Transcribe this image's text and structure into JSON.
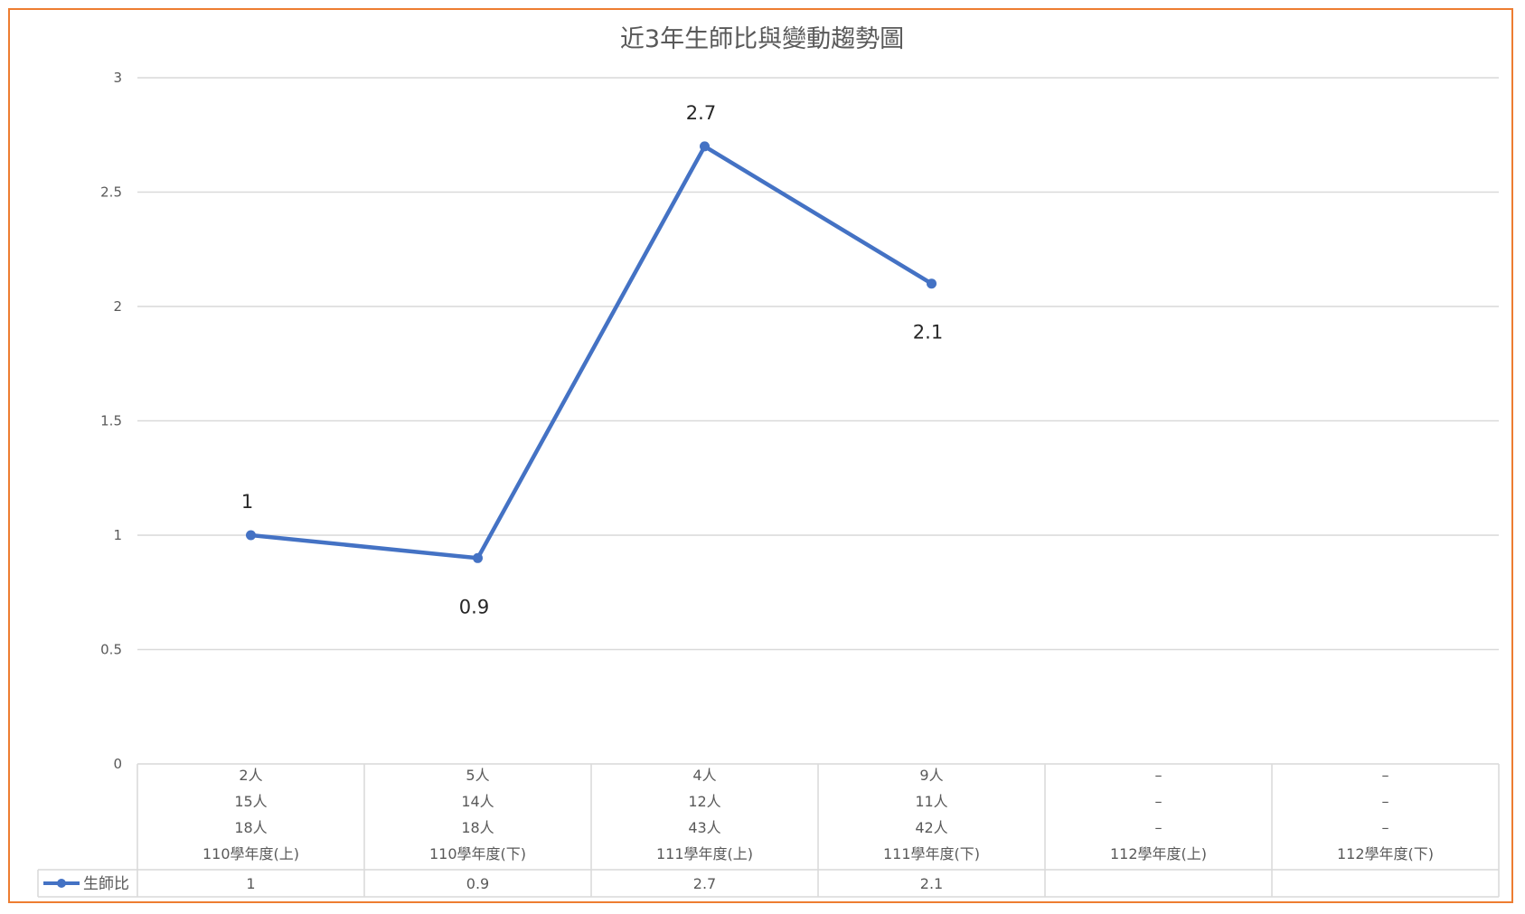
{
  "chart_data": {
    "type": "line",
    "title": "近3年生師比與變動趨勢圖",
    "categories": [
      "110學年度(上)",
      "110學年度(下)",
      "111學年度(上)",
      "111學年度(下)",
      "112學年度(上)",
      "112學年度(下)"
    ],
    "series": [
      {
        "name": "生師比",
        "values": [
          1,
          0.9,
          2.7,
          2.1,
          null,
          null
        ]
      }
    ],
    "data_labels": [
      "1",
      "0.9",
      "2.7",
      "2.1"
    ],
    "table_values": [
      "1",
      "0.9",
      "2.7",
      "2.1",
      "",
      ""
    ],
    "category_rows": [
      [
        "2人",
        "15人",
        "18人"
      ],
      [
        "5人",
        "14人",
        "18人"
      ],
      [
        "4人",
        "12人",
        "43人"
      ],
      [
        "9人",
        "11人",
        "42人"
      ],
      [
        "–",
        "–",
        "–"
      ],
      [
        "–",
        "–",
        "–"
      ]
    ],
    "yticks": [
      "0",
      "0.5",
      "1",
      "1.5",
      "2",
      "2.5",
      "3"
    ],
    "ylim": [
      0,
      3
    ],
    "grid": true,
    "legend": "bottom-left (data table)",
    "colors": {
      "series": "#4472C4",
      "frame": "#ED7D31",
      "grid": "#D9D9D9"
    }
  }
}
